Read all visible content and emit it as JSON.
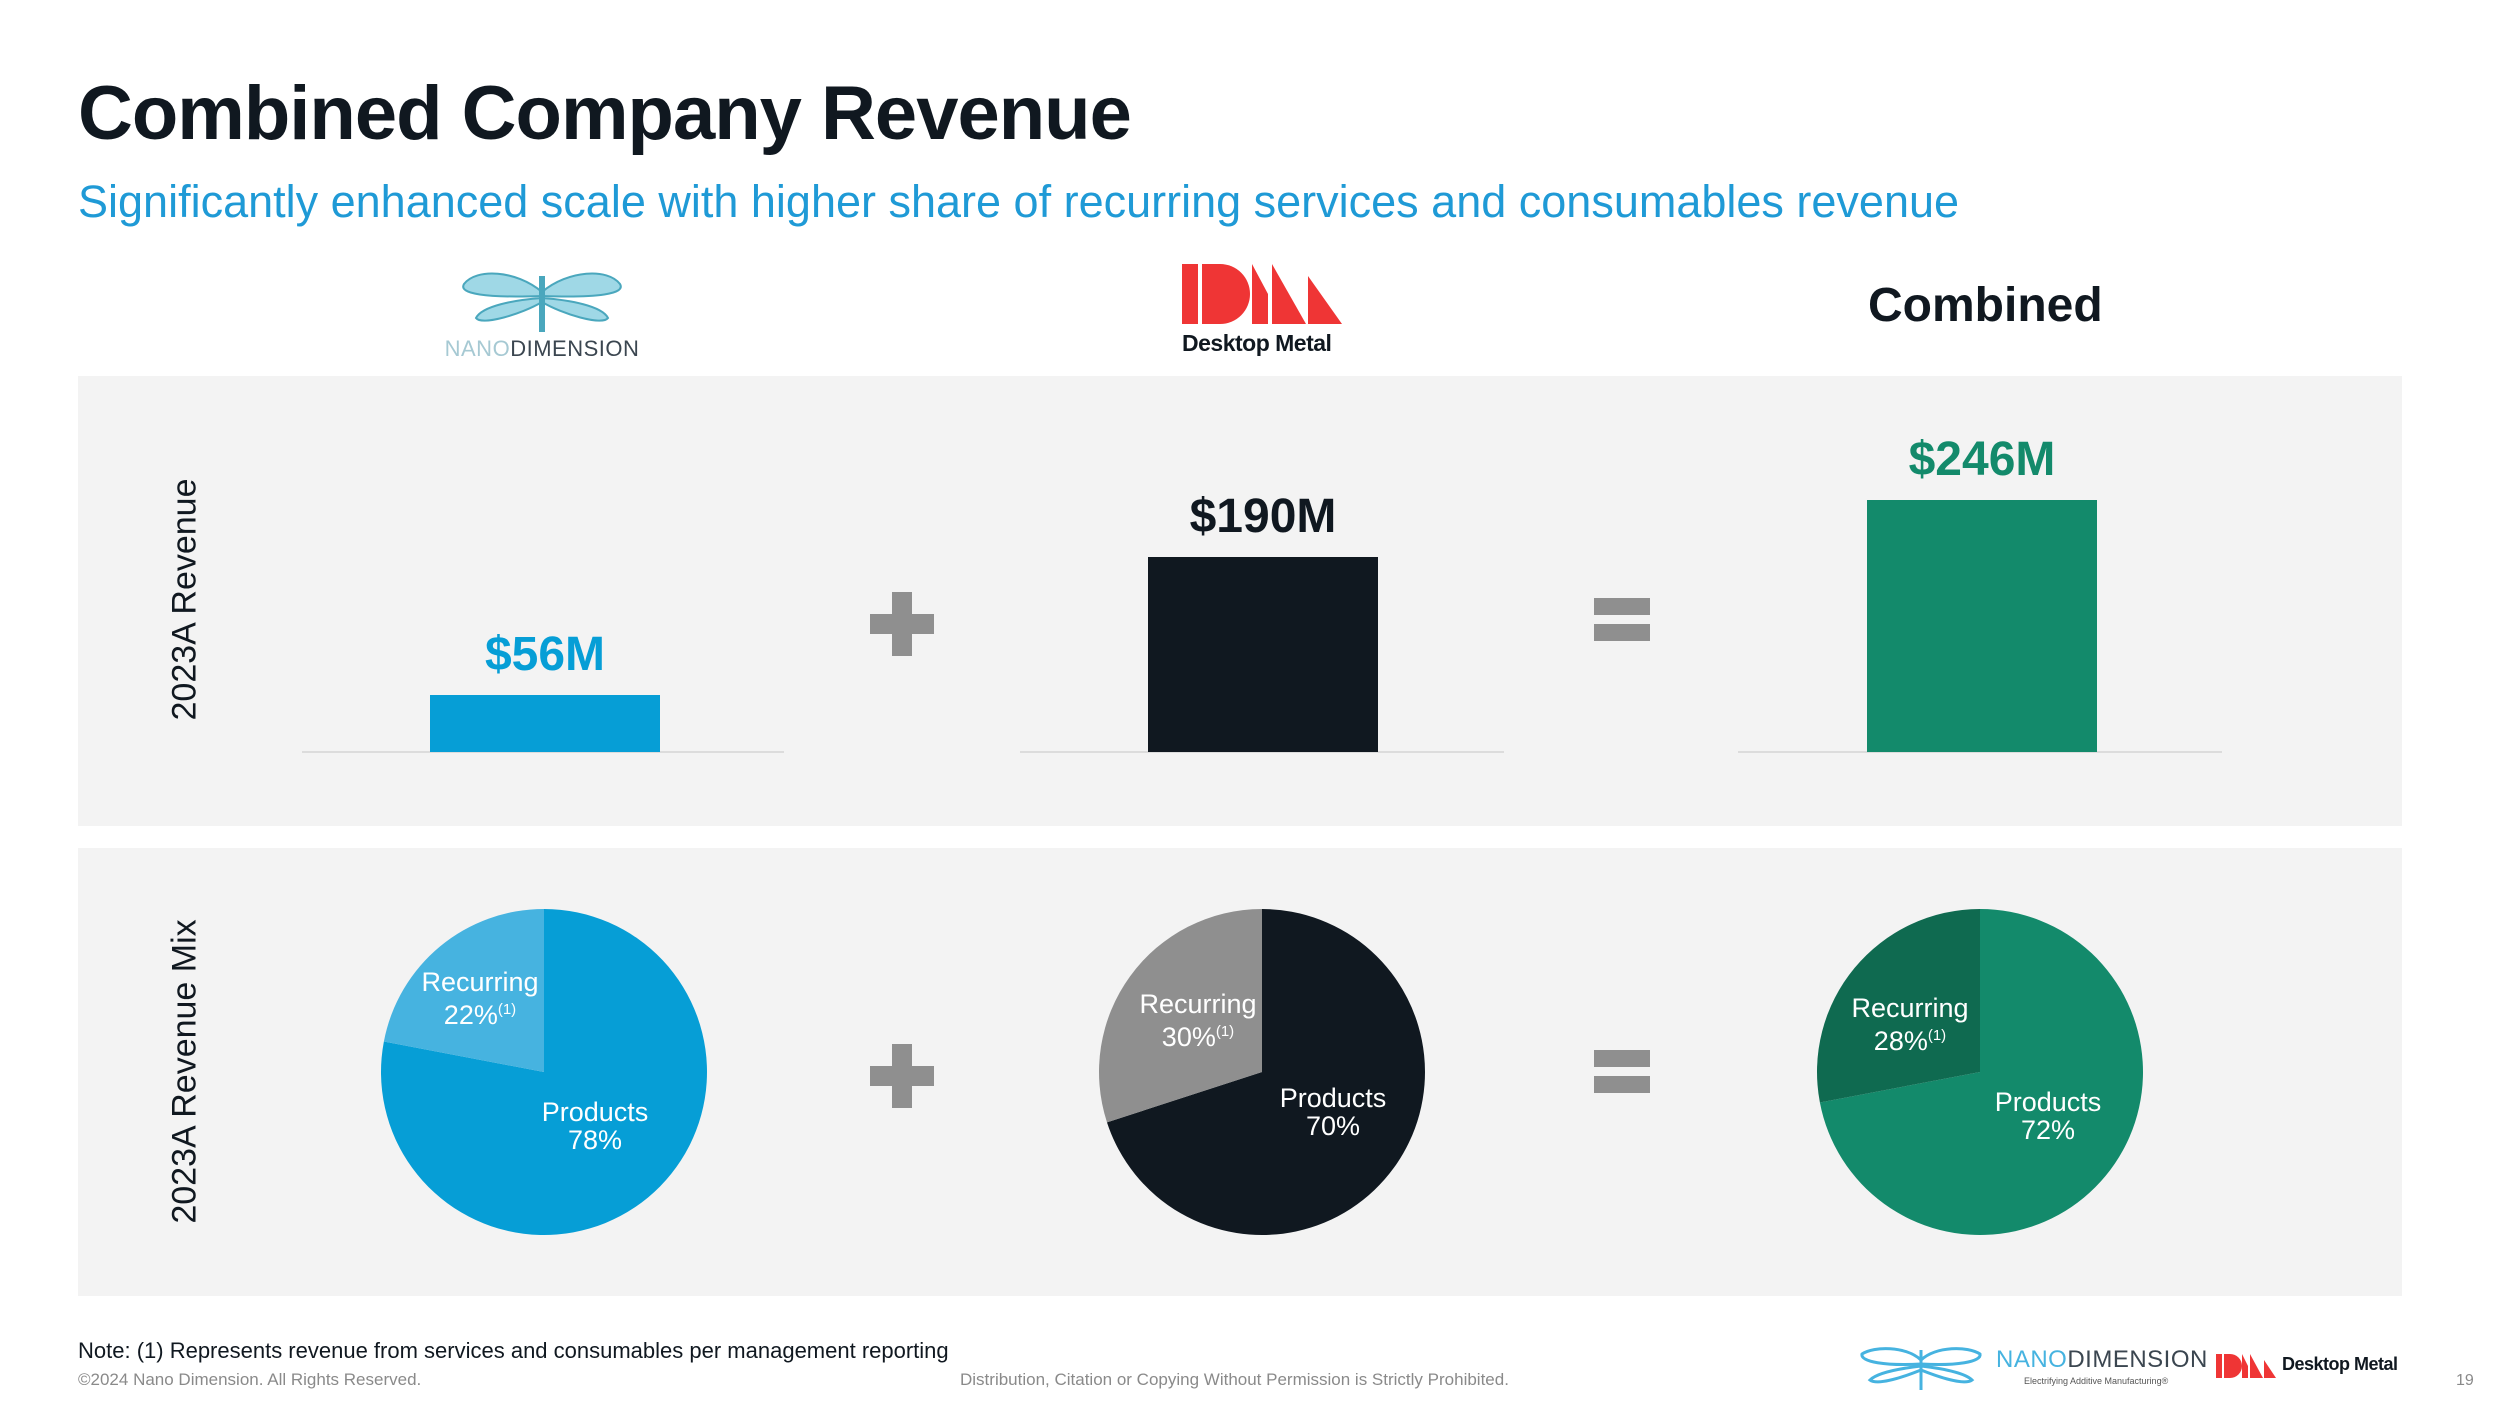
{
  "header": {
    "title": "Combined Company Revenue",
    "subtitle": "Significantly enhanced scale with higher share of recurring services and consumables revenue"
  },
  "columns": {
    "nano": {
      "logo_word_light": "NANO",
      "logo_word_dark": "DIMENSION"
    },
    "desktop_metal": {
      "logo_text": "Desktop Metal"
    },
    "combined": {
      "heading": "Combined"
    }
  },
  "operators": {
    "plus": "+",
    "equals": "="
  },
  "colors": {
    "nano_blue": "#069ed6",
    "nano_blue_light": "#46b3e0",
    "dm_black": "#101820",
    "dm_gray": "#8f8f8f",
    "combined_green": "#138a6b",
    "combined_green_dark": "#0f6a50",
    "subtitle_blue": "#1f9ad6",
    "dm_red": "#ef3535",
    "panel_bg": "#f3f3f3"
  },
  "chart_data": [
    {
      "type": "bar",
      "title": "2023A Revenue",
      "ylabel": "2023A Revenue",
      "unit": "$M",
      "ylim": [
        0,
        246
      ],
      "categories": [
        "Nano Dimension",
        "Desktop Metal",
        "Combined"
      ],
      "values": [
        56,
        190,
        246
      ],
      "data_labels": [
        "$56M",
        "$190M",
        "$246M"
      ],
      "grid": false
    },
    {
      "type": "pie",
      "title": "2023A Revenue Mix",
      "ylabel": "2023A Revenue Mix",
      "pies": [
        {
          "name": "Nano Dimension",
          "slices": [
            {
              "label": "Recurring",
              "value": 22,
              "text": "22%",
              "footnote": "(1)"
            },
            {
              "label": "Products",
              "value": 78,
              "text": "78%"
            }
          ]
        },
        {
          "name": "Desktop Metal",
          "slices": [
            {
              "label": "Recurring",
              "value": 30,
              "text": "30%",
              "footnote": "(1)"
            },
            {
              "label": "Products",
              "value": 70,
              "text": "70%"
            }
          ]
        },
        {
          "name": "Combined",
          "slices": [
            {
              "label": "Recurring",
              "value": 28,
              "text": "28%",
              "footnote": "(1)"
            },
            {
              "label": "Products",
              "value": 72,
              "text": "72%"
            }
          ]
        }
      ]
    }
  ],
  "footer": {
    "note": "Note: (1) Represents revenue from services and consumables per management reporting",
    "copyright": "©2024 Nano Dimension. All Rights Reserved.",
    "disclaimer": "Distribution, Citation or Copying Without Permission is Strictly Prohibited.",
    "nano_logo_light": "NANO",
    "nano_logo_dark": "DIMENSION",
    "nano_tagline": "Electrifying Additive Manufacturing®",
    "dm_logo_text": "Desktop Metal",
    "page_number": "19"
  }
}
